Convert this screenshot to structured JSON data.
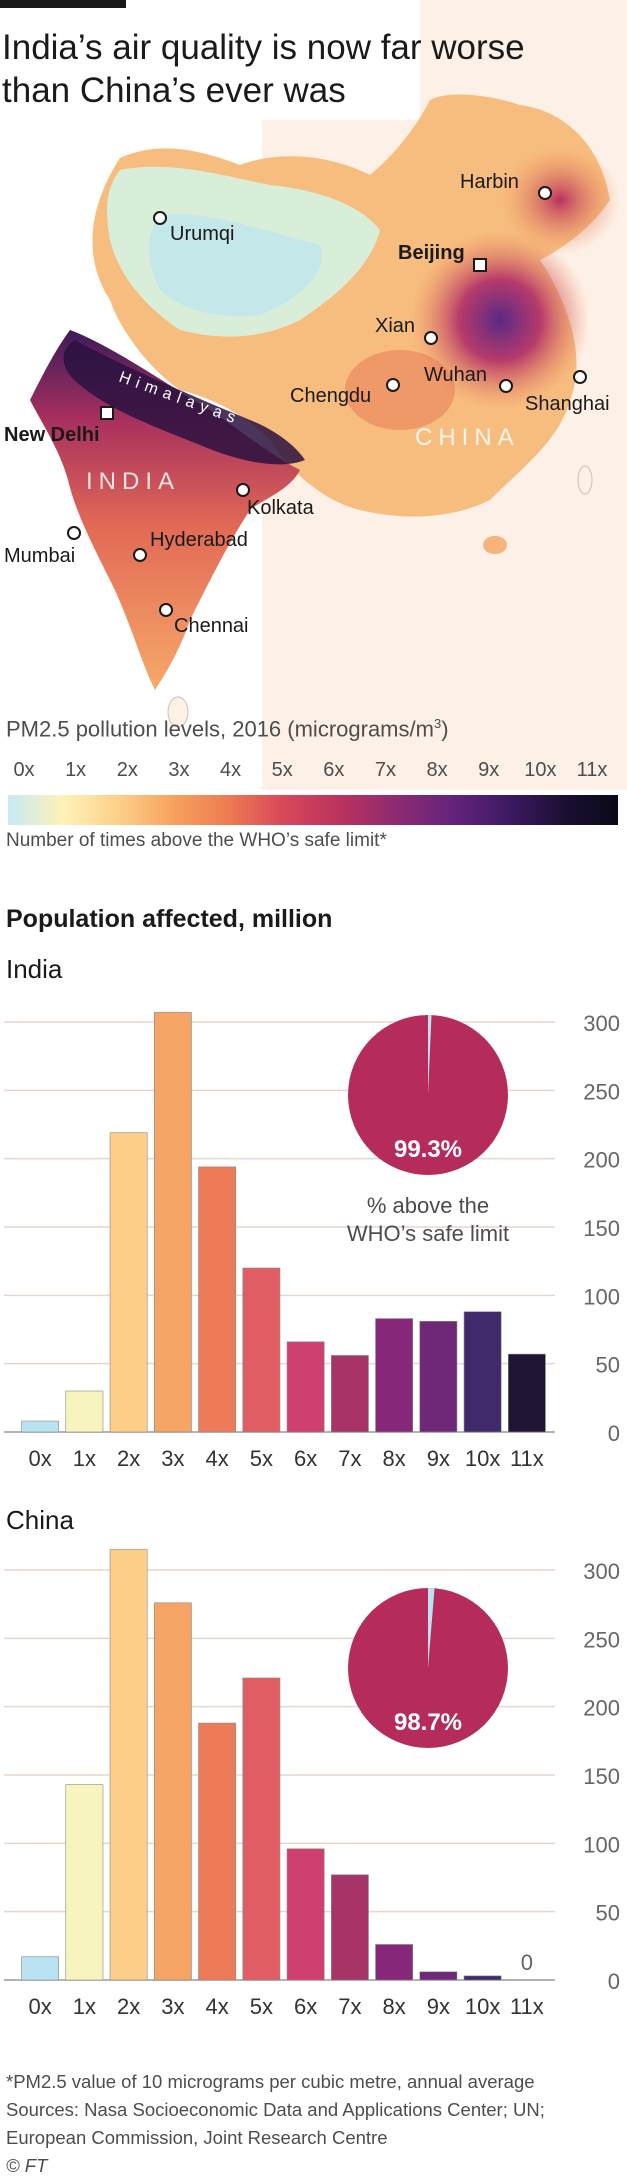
{
  "header": {
    "title_line1": "India’s air quality is now far worse",
    "title_line2": "than China’s ever was"
  },
  "map": {
    "labels": {
      "harbin": "Harbin",
      "urumqi": "Urumqi",
      "beijing": "Beijing",
      "xian": "Xian",
      "chengdu": "Chengdu",
      "wuhan": "Wuhan",
      "shanghai": "Shanghai",
      "himalayas": "Himalayas",
      "new_delhi": "New Delhi",
      "india": "INDIA",
      "china": "CHINA",
      "kolkata": "Kolkata",
      "mumbai": "Mumbai",
      "hyderabad": "Hyderabad",
      "chennai": "Chennai"
    }
  },
  "legend": {
    "title": "PM2.5 pollution levels, 2016 (micrograms/m",
    "title_sup": "3",
    "title_end": ")",
    "ticks": [
      "0x",
      "1x",
      "2x",
      "3x",
      "4x",
      "5x",
      "6x",
      "7x",
      "8x",
      "9x",
      "10x",
      "11x"
    ],
    "note": "Number of times above the WHO’s safe limit*",
    "colors": [
      "#c7e9f4",
      "#fef2b8",
      "#fdd08a",
      "#f7a35e",
      "#ee7b51",
      "#d9485a",
      "#b8325e",
      "#8c2a73",
      "#63237c",
      "#3d1a64",
      "#1c0f33",
      "#0a0a18"
    ]
  },
  "population": {
    "title": "Population affected, million"
  },
  "chart_data": [
    {
      "type": "bar",
      "title": "India",
      "categories": [
        "0x",
        "1x",
        "2x",
        "3x",
        "4x",
        "5x",
        "6x",
        "7x",
        "8x",
        "9x",
        "10x",
        "11x"
      ],
      "values": [
        8,
        30,
        219,
        307,
        194,
        120,
        66,
        56,
        83,
        81,
        88,
        57
      ],
      "ylim": [
        0,
        300
      ],
      "yticks": [
        0,
        50,
        100,
        150,
        200,
        250,
        300
      ],
      "bar_colors": [
        "#b9e3f3",
        "#f7f4be",
        "#fdcd8a",
        "#f6a464",
        "#ee7b58",
        "#e05d63",
        "#cf4070",
        "#a73466",
        "#87277a",
        "#6e2877",
        "#3f2a6b",
        "#201434"
      ],
      "inset_pie": {
        "value_percent": 99.3,
        "label": "99.3%",
        "caption_line1": "% above the",
        "caption_line2": "WHO’s safe limit",
        "color": "#b52c5c",
        "rest_color": "#b9e3f3"
      }
    },
    {
      "type": "bar",
      "title": "China",
      "categories": [
        "0x",
        "1x",
        "2x",
        "3x",
        "4x",
        "5x",
        "6x",
        "7x",
        "8x",
        "9x",
        "10x",
        "11x"
      ],
      "values": [
        17,
        143,
        315,
        276,
        188,
        221,
        96,
        77,
        26,
        6,
        3,
        0
      ],
      "zero_label": "0",
      "ylim": [
        0,
        300
      ],
      "yticks": [
        0,
        50,
        100,
        150,
        200,
        250,
        300
      ],
      "bar_colors": [
        "#b9e3f3",
        "#f7f4be",
        "#fdcd8a",
        "#f6a464",
        "#ee7b58",
        "#e05d63",
        "#cf4070",
        "#a73466",
        "#87277a",
        "#6e2877",
        "#3f2a6b",
        "#201434"
      ],
      "inset_pie": {
        "value_percent": 98.7,
        "label": "98.7%",
        "color": "#b52c5c",
        "rest_color": "#b9e3f3"
      }
    }
  ],
  "footer": {
    "note": "*PM2.5 value of 10 micrograms per cubic metre, annual average",
    "sources_line1": "Sources: Nasa Socioeconomic Data and Applications Center; UN;",
    "sources_line2": "European Commission, Joint Research Centre",
    "copyright": "© FT"
  }
}
